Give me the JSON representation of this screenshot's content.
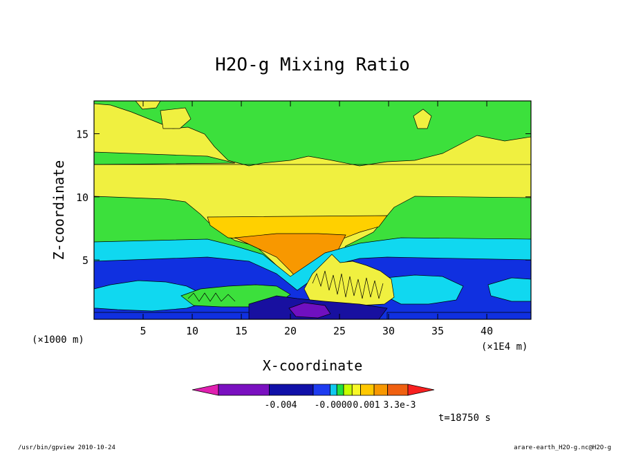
{
  "chart_data": {
    "type": "heatmap",
    "title": "H2O-g Mixing Ratio",
    "xlabel": "X-coordinate",
    "ylabel": "Z-coordinate",
    "x_unit_left": "(×1000 m)",
    "x_unit_right": "(×1E4 m)",
    "xlim": [
      0,
      44.5
    ],
    "ylim": [
      0.3,
      17.6
    ],
    "x_ticks": [
      {
        "value": 5,
        "label": "5"
      },
      {
        "value": 10,
        "label": "10"
      },
      {
        "value": 15,
        "label": "15"
      },
      {
        "value": 20,
        "label": "20"
      },
      {
        "value": 25,
        "label": "25"
      },
      {
        "value": 30,
        "label": "30"
      },
      {
        "value": 35,
        "label": "35"
      },
      {
        "value": 40,
        "label": "40"
      }
    ],
    "y_ticks": [
      {
        "value": 5,
        "label": "5"
      },
      {
        "value": 10,
        "label": "10"
      },
      {
        "value": 15,
        "label": "15"
      }
    ],
    "colorbar": {
      "colors": [
        "#e020b0",
        "#7a10c0",
        "#1010a8",
        "#1e3cf0",
        "#10c8f0",
        "#20e040",
        "#c8ff00",
        "#f8f828",
        "#ffc800",
        "#f89800",
        "#f06010",
        "#f82020"
      ],
      "labels": [
        "-0.004",
        "-0.0000",
        "0.001",
        "3.3e-3"
      ]
    },
    "levels": {
      "green": "#3ce03c",
      "yellow": "#f0f040",
      "gold": "#ffd000",
      "orange": "#f89800",
      "cyan": "#10d8f0",
      "blue": "#1030e0",
      "dark_blue": "#1810a0",
      "purple": "#7010c0"
    },
    "time_label": "t=18750 s"
  },
  "footer": {
    "left": "/usr/bin/gpview  2010-10-24",
    "right": "arare-earth_H2O-g.nc@H2O-g"
  }
}
